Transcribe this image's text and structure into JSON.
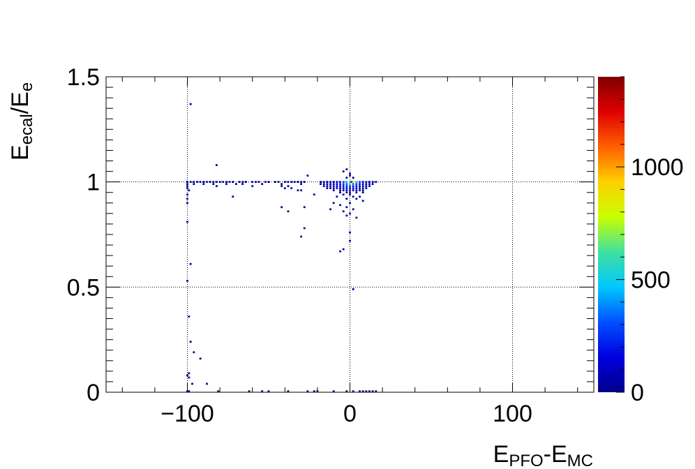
{
  "chart_data": {
    "type": "heatmap",
    "title": "",
    "xlabel_main": "E",
    "xlabel_sub1": "PFO",
    "xlabel_mid": "-E",
    "xlabel_sub2": "MC",
    "ylabel_main": "E",
    "ylabel_sub1": "ecal",
    "ylabel_mid": "/E",
    "ylabel_sub2": "e",
    "xlim": [
      -150,
      150
    ],
    "ylim": [
      0,
      1.5
    ],
    "zlim": [
      0,
      1400
    ],
    "grid": true,
    "x_ticks": [
      {
        "value": -100,
        "label": "−100"
      },
      {
        "value": 0,
        "label": "0"
      },
      {
        "value": 100,
        "label": "100"
      }
    ],
    "y_ticks": [
      {
        "value": 0,
        "label": "0"
      },
      {
        "value": 0.5,
        "label": "0.5"
      },
      {
        "value": 1,
        "label": "1"
      },
      {
        "value": 1.5,
        "label": "1.5"
      }
    ],
    "z_ticks": [
      {
        "value": 0,
        "label": "0"
      },
      {
        "value": 500,
        "label": "500"
      },
      {
        "value": 1000,
        "label": "1000"
      }
    ],
    "colormap": [
      "#00008b",
      "#0000e0",
      "#0050ff",
      "#00c8ff",
      "#40e0a0",
      "#c8ff00",
      "#ffd000",
      "#ff6000",
      "#e00000",
      "#800000"
    ],
    "points": [
      [
        -100,
        1.0,
        60
      ],
      [
        -98,
        1.0,
        60
      ],
      [
        -96,
        1.0,
        60
      ],
      [
        -94,
        1.0,
        50
      ],
      [
        -92,
        1.0,
        50
      ],
      [
        -90,
        1.0,
        40
      ],
      [
        -88,
        1.0,
        40
      ],
      [
        -86,
        1.0,
        40
      ],
      [
        -84,
        1.0,
        35
      ],
      [
        -82,
        1.0,
        35
      ],
      [
        -80,
        1.0,
        30
      ],
      [
        -78,
        1.0,
        30
      ],
      [
        -76,
        1.0,
        30
      ],
      [
        -74,
        1.0,
        25
      ],
      [
        -72,
        1.0,
        25
      ],
      [
        -68,
        1.0,
        20
      ],
      [
        -66,
        1.0,
        20
      ],
      [
        -64,
        1.0,
        20
      ],
      [
        -60,
        1.0,
        20
      ],
      [
        -58,
        1.0,
        20
      ],
      [
        -56,
        1.0,
        15
      ],
      [
        -52,
        1.0,
        15
      ],
      [
        -50,
        1.0,
        15
      ],
      [
        -46,
        1.0,
        15
      ],
      [
        -44,
        1.0,
        15
      ],
      [
        -40,
        1.0,
        15
      ],
      [
        -38,
        1.0,
        15
      ],
      [
        -36,
        1.0,
        15
      ],
      [
        -34,
        1.0,
        15
      ],
      [
        -32,
        1.0,
        15
      ],
      [
        -30,
        1.0,
        15
      ],
      [
        -28,
        1.0,
        15
      ],
      [
        -100,
        0.99,
        40
      ],
      [
        -96,
        0.99,
        30
      ],
      [
        -90,
        0.99,
        20
      ],
      [
        -84,
        0.99,
        20
      ],
      [
        -76,
        0.99,
        15
      ],
      [
        -70,
        0.99,
        15
      ],
      [
        -66,
        0.99,
        15
      ],
      [
        -54,
        0.99,
        15
      ],
      [
        -42,
        0.99,
        15
      ],
      [
        -30,
        0.99,
        15
      ],
      [
        -100,
        0.98,
        25
      ],
      [
        -82,
        0.98,
        15
      ],
      [
        -60,
        0.98,
        15
      ],
      [
        -42,
        0.98,
        15
      ],
      [
        -38,
        0.98,
        15
      ],
      [
        -100,
        0.97,
        25
      ],
      [
        -99,
        0.96,
        20
      ],
      [
        -100,
        0.94,
        15
      ],
      [
        -100,
        0.92,
        15
      ],
      [
        -100,
        0.9,
        15
      ],
      [
        -100,
        0.81,
        15
      ],
      [
        -82,
        1.08,
        10
      ],
      [
        -98,
        1.37,
        10
      ],
      [
        -72,
        0.93,
        10
      ],
      [
        -26,
        1.03,
        10
      ],
      [
        -40,
        0.97,
        10
      ],
      [
        -36,
        0.97,
        10
      ],
      [
        -32,
        0.96,
        10
      ],
      [
        -30,
        0.96,
        10
      ],
      [
        -42,
        0.88,
        10
      ],
      [
        -38,
        0.86,
        10
      ],
      [
        -28,
        0.88,
        10
      ],
      [
        -22,
        0.94,
        10
      ],
      [
        -28,
        0.78,
        10
      ],
      [
        -30,
        0.74,
        10
      ],
      [
        -18,
        1.0,
        40
      ],
      [
        -16,
        1.0,
        50
      ],
      [
        -14,
        1.0,
        60
      ],
      [
        -12,
        1.0,
        80
      ],
      [
        -10,
        1.0,
        100
      ],
      [
        -8,
        1.0,
        150
      ],
      [
        -6,
        1.0,
        200
      ],
      [
        -4,
        1.0,
        300
      ],
      [
        -2,
        1.0,
        450
      ],
      [
        0,
        1.0,
        600
      ],
      [
        1,
        1.0,
        1400
      ],
      [
        2,
        1.0,
        900
      ],
      [
        4,
        1.0,
        500
      ],
      [
        6,
        1.0,
        300
      ],
      [
        8,
        1.0,
        200
      ],
      [
        10,
        1.0,
        120
      ],
      [
        12,
        1.0,
        80
      ],
      [
        14,
        1.0,
        50
      ],
      [
        16,
        1.0,
        30
      ],
      [
        -18,
        0.99,
        40
      ],
      [
        -16,
        0.99,
        60
      ],
      [
        -14,
        0.99,
        60
      ],
      [
        -12,
        0.99,
        80
      ],
      [
        -10,
        0.99,
        100
      ],
      [
        -8,
        0.99,
        140
      ],
      [
        -6,
        0.99,
        180
      ],
      [
        -4,
        0.99,
        250
      ],
      [
        -2,
        0.99,
        320
      ],
      [
        0,
        0.99,
        500
      ],
      [
        2,
        0.99,
        350
      ],
      [
        4,
        0.99,
        250
      ],
      [
        6,
        0.99,
        180
      ],
      [
        8,
        0.99,
        120
      ],
      [
        10,
        0.99,
        80
      ],
      [
        12,
        0.99,
        50
      ],
      [
        14,
        0.99,
        30
      ],
      [
        -16,
        0.98,
        40
      ],
      [
        -14,
        0.98,
        50
      ],
      [
        -12,
        0.98,
        60
      ],
      [
        -10,
        0.98,
        80
      ],
      [
        -8,
        0.98,
        100
      ],
      [
        -6,
        0.98,
        120
      ],
      [
        -4,
        0.98,
        150
      ],
      [
        -2,
        0.98,
        200
      ],
      [
        0,
        0.98,
        250
      ],
      [
        2,
        0.98,
        200
      ],
      [
        4,
        0.98,
        150
      ],
      [
        6,
        0.98,
        110
      ],
      [
        8,
        0.98,
        70
      ],
      [
        10,
        0.98,
        40
      ],
      [
        12,
        0.98,
        20
      ],
      [
        -14,
        0.97,
        30
      ],
      [
        -12,
        0.97,
        40
      ],
      [
        -10,
        0.97,
        50
      ],
      [
        -8,
        0.97,
        60
      ],
      [
        -6,
        0.97,
        70
      ],
      [
        -4,
        0.97,
        90
      ],
      [
        -2,
        0.97,
        100
      ],
      [
        0,
        0.97,
        120
      ],
      [
        2,
        0.97,
        100
      ],
      [
        4,
        0.97,
        80
      ],
      [
        6,
        0.97,
        60
      ],
      [
        8,
        0.97,
        40
      ],
      [
        10,
        0.97,
        20
      ],
      [
        -10,
        0.96,
        30
      ],
      [
        -6,
        0.96,
        30
      ],
      [
        -4,
        0.96,
        40
      ],
      [
        -2,
        0.96,
        50
      ],
      [
        0,
        0.96,
        60
      ],
      [
        2,
        0.96,
        50
      ],
      [
        4,
        0.96,
        40
      ],
      [
        6,
        0.96,
        30
      ],
      [
        8,
        0.96,
        20
      ],
      [
        -6,
        0.95,
        20
      ],
      [
        -2,
        0.95,
        30
      ],
      [
        0,
        0.95,
        30
      ],
      [
        4,
        0.95,
        20
      ],
      [
        8,
        0.95,
        15
      ],
      [
        -4,
        0.94,
        20
      ],
      [
        0,
        0.94,
        20
      ],
      [
        2,
        0.93,
        15
      ],
      [
        6,
        0.93,
        15
      ],
      [
        -8,
        0.93,
        15
      ],
      [
        -2,
        0.92,
        15
      ],
      [
        4,
        0.92,
        15
      ],
      [
        8,
        0.91,
        15
      ],
      [
        -10,
        0.9,
        15
      ],
      [
        0,
        0.9,
        15
      ],
      [
        -6,
        0.89,
        15
      ],
      [
        -2,
        0.88,
        15
      ],
      [
        2,
        0.87,
        15
      ],
      [
        -4,
        0.86,
        15
      ],
      [
        -12,
        0.87,
        15
      ],
      [
        0,
        0.85,
        15
      ],
      [
        4,
        0.83,
        15
      ],
      [
        -2,
        0.84,
        15
      ],
      [
        -2,
        1.02,
        15
      ],
      [
        0,
        1.03,
        15
      ],
      [
        -4,
        1.05,
        15
      ],
      [
        -2,
        1.06,
        15
      ],
      [
        0,
        1.04,
        15
      ],
      [
        2,
        1.02,
        15
      ],
      [
        0,
        0.76,
        10
      ],
      [
        0,
        0.72,
        10
      ],
      [
        -6,
        0.67,
        10
      ],
      [
        -4,
        0.68,
        10
      ],
      [
        2,
        0.49,
        10
      ],
      [
        -98,
        0.61,
        10
      ],
      [
        -100,
        0.53,
        10
      ],
      [
        -99,
        0.36,
        10
      ],
      [
        -98,
        0.24,
        10
      ],
      [
        -96,
        0.19,
        10
      ],
      [
        -92,
        0.16,
        10
      ],
      [
        -99,
        0.09,
        10
      ],
      [
        -100,
        0.08,
        10
      ],
      [
        -99,
        0.07,
        10
      ],
      [
        -97,
        0.04,
        10
      ],
      [
        -88,
        0.04,
        10
      ],
      [
        -100,
        0.0,
        40
      ],
      [
        -99,
        0.0,
        30
      ],
      [
        -81,
        0.0,
        15
      ],
      [
        -62,
        0.0,
        10
      ],
      [
        -54,
        0.0,
        10
      ],
      [
        -50,
        0.0,
        10
      ],
      [
        -38,
        0.0,
        10
      ],
      [
        -26,
        0.0,
        10
      ],
      [
        -22,
        0.0,
        10
      ],
      [
        -20,
        0.0,
        10
      ],
      [
        -10,
        0.0,
        10
      ],
      [
        -2,
        0.0,
        15
      ],
      [
        2,
        0.0,
        15
      ],
      [
        6,
        0.0,
        15
      ],
      [
        8,
        0.0,
        15
      ],
      [
        10,
        0.0,
        15
      ],
      [
        12,
        0.0,
        15
      ],
      [
        14,
        0.0,
        15
      ],
      [
        16,
        0.0,
        15
      ]
    ]
  }
}
